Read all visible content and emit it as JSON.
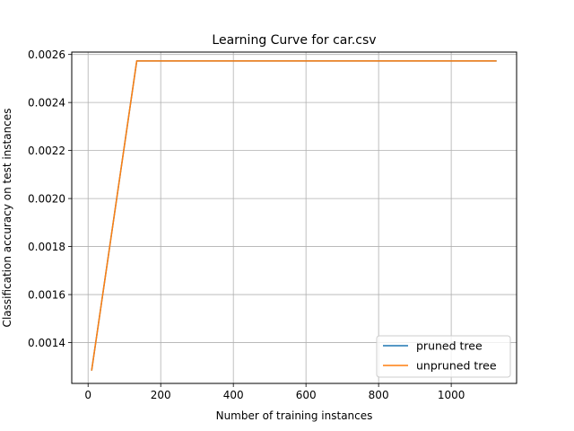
{
  "chart_data": {
    "type": "line",
    "title": "Learning Curve for car.csv",
    "xlabel": "Number of training instances",
    "ylabel": "Classification accuracy on test instances",
    "xlim": [
      -45,
      1180
    ],
    "ylim": [
      0.00123,
      0.00261
    ],
    "xticks": [
      0,
      200,
      400,
      600,
      800,
      1000
    ],
    "xtick_labels": [
      "0",
      "200",
      "400",
      "600",
      "800",
      "1000"
    ],
    "yticks": [
      0.0014,
      0.0016,
      0.0018,
      0.002,
      0.0022,
      0.0024,
      0.0026
    ],
    "ytick_labels": [
      "0.0014",
      "0.0016",
      "0.0018",
      "0.0020",
      "0.0022",
      "0.0024",
      "0.0026"
    ],
    "grid": true,
    "legend_position": "lower-right",
    "x": [
      10,
      134,
      1123
    ],
    "series": [
      {
        "name": "pruned tree",
        "color": "#1f77b4",
        "values": [
          0.001286,
          0.002573,
          0.002573
        ]
      },
      {
        "name": "unpruned tree",
        "color": "#ff7f0e",
        "values": [
          0.001286,
          0.002573,
          0.002573
        ]
      }
    ]
  }
}
